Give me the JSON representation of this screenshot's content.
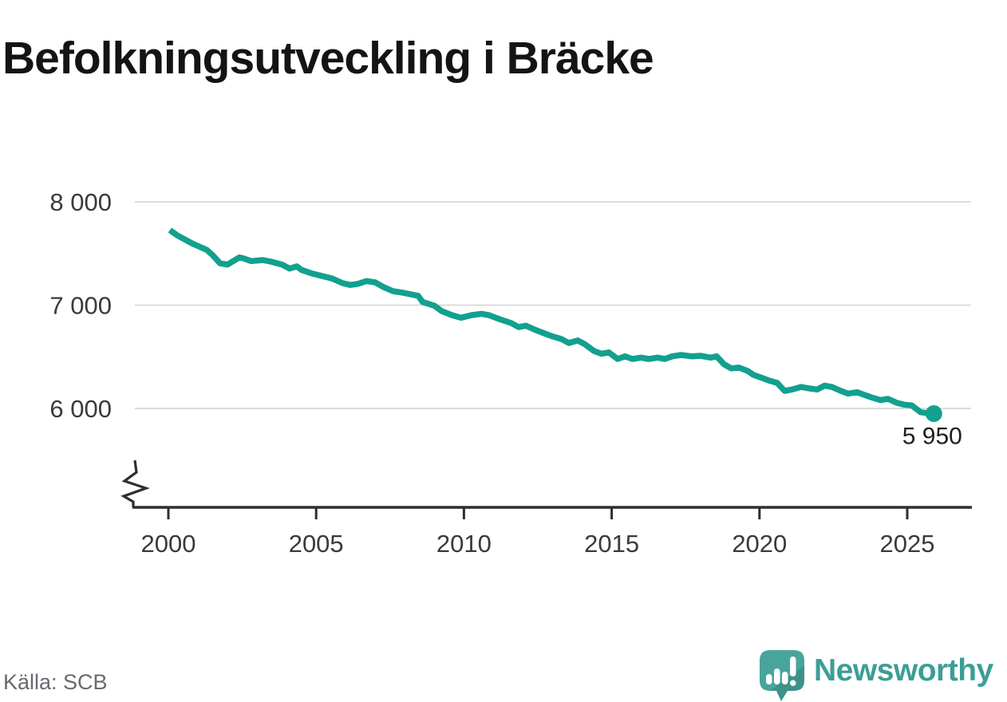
{
  "title": "Befolkningsutveckling i Bräcke",
  "source": {
    "label": "Källa: SCB"
  },
  "brand": {
    "name": "Newsworthy",
    "icon": "speech-bubble-bar-chart-exclamation-icon"
  },
  "colors": {
    "line": "#12a08f",
    "grid": "#dcdcdc",
    "axis": "#2e2e2e",
    "axis_label": "#3a3a3a",
    "end_label": "#1e1e1e",
    "title": "#141414",
    "source_text": "#686a70",
    "brand_teal": "#3c9e95",
    "brand_bubble": "#47a59c"
  },
  "chart_data": {
    "type": "line",
    "title": "Befolkningsutveckling i Bräcke",
    "xlabel": "",
    "ylabel": "",
    "x_range": [
      1998.9,
      2027.2
    ],
    "y_ticks": [
      8000,
      7000,
      6000
    ],
    "y_tick_labels": [
      "8 000",
      "7 000",
      "6 000"
    ],
    "x_ticks": [
      2000,
      2005,
      2010,
      2015,
      2020,
      2025
    ],
    "grid": "horizontal",
    "legend": "none",
    "y_axis_break": true,
    "end_point": {
      "x": 2025.9,
      "y": 5950,
      "label": "5 950"
    },
    "series": [
      {
        "name": "Befolkning",
        "points": [
          [
            2000.05,
            7727
          ],
          [
            2000.3,
            7676
          ],
          [
            2000.8,
            7598
          ],
          [
            2001.3,
            7534
          ],
          [
            2001.5,
            7483
          ],
          [
            2001.75,
            7405
          ],
          [
            2002.0,
            7392
          ],
          [
            2002.4,
            7462
          ],
          [
            2002.55,
            7452
          ],
          [
            2002.8,
            7426
          ],
          [
            2003.2,
            7436
          ],
          [
            2003.5,
            7419
          ],
          [
            2003.85,
            7392
          ],
          [
            2004.1,
            7354
          ],
          [
            2004.35,
            7375
          ],
          [
            2004.5,
            7341
          ],
          [
            2004.85,
            7307
          ],
          [
            2005.2,
            7282
          ],
          [
            2005.55,
            7256
          ],
          [
            2005.9,
            7212
          ],
          [
            2006.15,
            7195
          ],
          [
            2006.4,
            7205
          ],
          [
            2006.7,
            7233
          ],
          [
            2007.0,
            7220
          ],
          [
            2007.25,
            7179
          ],
          [
            2007.6,
            7135
          ],
          [
            2007.9,
            7122
          ],
          [
            2008.45,
            7090
          ],
          [
            2008.6,
            7032
          ],
          [
            2009.0,
            6994
          ],
          [
            2009.25,
            6942
          ],
          [
            2009.6,
            6903
          ],
          [
            2009.9,
            6878
          ],
          [
            2010.25,
            6903
          ],
          [
            2010.6,
            6916
          ],
          [
            2010.85,
            6903
          ],
          [
            2011.2,
            6865
          ],
          [
            2011.6,
            6826
          ],
          [
            2011.85,
            6788
          ],
          [
            2012.1,
            6801
          ],
          [
            2012.4,
            6762
          ],
          [
            2012.75,
            6723
          ],
          [
            2013.0,
            6697
          ],
          [
            2013.3,
            6672
          ],
          [
            2013.55,
            6633
          ],
          [
            2013.85,
            6658
          ],
          [
            2014.1,
            6620
          ],
          [
            2014.4,
            6556
          ],
          [
            2014.65,
            6530
          ],
          [
            2014.9,
            6542
          ],
          [
            2015.2,
            6479
          ],
          [
            2015.45,
            6504
          ],
          [
            2015.7,
            6479
          ],
          [
            2016.0,
            6492
          ],
          [
            2016.25,
            6479
          ],
          [
            2016.55,
            6492
          ],
          [
            2016.8,
            6479
          ],
          [
            2017.05,
            6504
          ],
          [
            2017.35,
            6517
          ],
          [
            2017.7,
            6504
          ],
          [
            2018.0,
            6510
          ],
          [
            2018.35,
            6492
          ],
          [
            2018.55,
            6504
          ],
          [
            2018.8,
            6427
          ],
          [
            2019.05,
            6388
          ],
          [
            2019.3,
            6396
          ],
          [
            2019.6,
            6363
          ],
          [
            2019.8,
            6324
          ],
          [
            2020.05,
            6299
          ],
          [
            2020.3,
            6272
          ],
          [
            2020.6,
            6247
          ],
          [
            2020.85,
            6170
          ],
          [
            2021.1,
            6183
          ],
          [
            2021.4,
            6208
          ],
          [
            2021.65,
            6195
          ],
          [
            2021.95,
            6183
          ],
          [
            2022.2,
            6221
          ],
          [
            2022.45,
            6208
          ],
          [
            2022.75,
            6170
          ],
          [
            2023.0,
            6144
          ],
          [
            2023.3,
            6157
          ],
          [
            2023.55,
            6131
          ],
          [
            2023.8,
            6106
          ],
          [
            2024.1,
            6080
          ],
          [
            2024.35,
            6093
          ],
          [
            2024.65,
            6054
          ],
          [
            2024.9,
            6036
          ],
          [
            2025.15,
            6029
          ],
          [
            2025.45,
            5964
          ],
          [
            2025.65,
            5955
          ],
          [
            2025.9,
            5950
          ]
        ]
      }
    ]
  }
}
